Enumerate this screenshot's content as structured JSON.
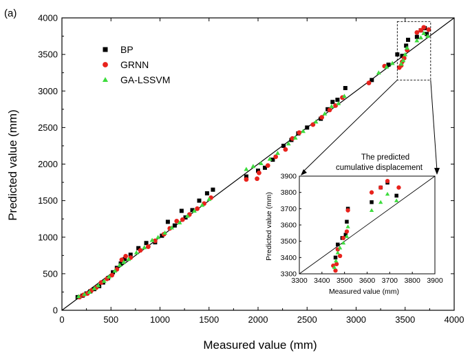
{
  "panel_label": "(a)",
  "chart_data": [
    {
      "type": "scatter",
      "xlabel": "Measured value (mm)",
      "ylabel": "Predicted value (mm)",
      "xlim": [
        0,
        4000
      ],
      "ylim": [
        0,
        4000
      ],
      "xticks": [
        0,
        500,
        1000,
        1500,
        2000,
        2500,
        3000,
        3500,
        4000
      ],
      "yticks": [
        0,
        500,
        1000,
        1500,
        2000,
        2500,
        3000,
        3500,
        4000
      ],
      "reference_line": "y = x",
      "legend_position": "top-left",
      "series": [
        {
          "name": "BP",
          "color": "#000000",
          "marker": "square",
          "points": [
            [
              160,
              180
            ],
            [
              210,
              200
            ],
            [
              250,
              230
            ],
            [
              290,
              260
            ],
            [
              330,
              290
            ],
            [
              380,
              330
            ],
            [
              420,
              380
            ],
            [
              470,
              440
            ],
            [
              520,
              520
            ],
            [
              560,
              580
            ],
            [
              600,
              640
            ],
            [
              640,
              700
            ],
            [
              700,
              760
            ],
            [
              780,
              850
            ],
            [
              860,
              920
            ],
            [
              950,
              930
            ],
            [
              1020,
              1020
            ],
            [
              1080,
              1210
            ],
            [
              1150,
              1160
            ],
            [
              1220,
              1360
            ],
            [
              1260,
              1270
            ],
            [
              1330,
              1370
            ],
            [
              1400,
              1500
            ],
            [
              1480,
              1600
            ],
            [
              1540,
              1650
            ],
            [
              1880,
              1830
            ],
            [
              2000,
              1910
            ],
            [
              2070,
              1950
            ],
            [
              2150,
              2060
            ],
            [
              2260,
              2250
            ],
            [
              2340,
              2330
            ],
            [
              2410,
              2420
            ],
            [
              2500,
              2500
            ],
            [
              2640,
              2620
            ],
            [
              2710,
              2750
            ],
            [
              2760,
              2850
            ],
            [
              2810,
              2880
            ],
            [
              2890,
              3040
            ],
            [
              3160,
              3150
            ],
            [
              3330,
              3360
            ],
            [
              3420,
              3500
            ],
            [
              3470,
              3480
            ],
            [
              3510,
              3620
            ],
            [
              3530,
              3700
            ],
            [
              3620,
              3740
            ],
            [
              3660,
              3830
            ],
            [
              3700,
              3860
            ],
            [
              3720,
              3780
            ]
          ]
        },
        {
          "name": "GRNN",
          "color": "#e8221c",
          "marker": "circle",
          "points": [
            [
              180,
              180
            ],
            [
              220,
              210
            ],
            [
              260,
              230
            ],
            [
              300,
              270
            ],
            [
              350,
              310
            ],
            [
              400,
              380
            ],
            [
              460,
              430
            ],
            [
              510,
              480
            ],
            [
              560,
              560
            ],
            [
              610,
              690
            ],
            [
              650,
              740
            ],
            [
              700,
              720
            ],
            [
              800,
              820
            ],
            [
              880,
              870
            ],
            [
              950,
              950
            ],
            [
              1040,
              1040
            ],
            [
              1100,
              1120
            ],
            [
              1170,
              1220
            ],
            [
              1230,
              1240
            ],
            [
              1300,
              1310
            ],
            [
              1380,
              1390
            ],
            [
              1450,
              1460
            ],
            [
              1520,
              1540
            ],
            [
              1880,
              1790
            ],
            [
              1990,
              1800
            ],
            [
              2010,
              1880
            ],
            [
              2100,
              1980
            ],
            [
              2180,
              2100
            ],
            [
              2280,
              2200
            ],
            [
              2350,
              2350
            ],
            [
              2420,
              2430
            ],
            [
              2560,
              2540
            ],
            [
              2650,
              2640
            ],
            [
              2730,
              2740
            ],
            [
              2790,
              2800
            ],
            [
              2860,
              2910
            ],
            [
              3130,
              3110
            ],
            [
              3290,
              3340
            ],
            [
              3440,
              3320
            ],
            [
              3460,
              3350
            ],
            [
              3470,
              3400
            ],
            [
              3490,
              3450
            ],
            [
              3520,
              3560
            ],
            [
              3620,
              3800
            ],
            [
              3660,
              3830
            ],
            [
              3690,
              3870
            ],
            [
              3740,
              3840
            ]
          ]
        },
        {
          "name": "GA-LSSVM",
          "color": "#3ddc3d",
          "marker": "triangle",
          "points": [
            [
              170,
              190
            ],
            [
              230,
              220
            ],
            [
              280,
              250
            ],
            [
              330,
              300
            ],
            [
              370,
              340
            ],
            [
              430,
              400
            ],
            [
              480,
              460
            ],
            [
              540,
              540
            ],
            [
              590,
              620
            ],
            [
              630,
              660
            ],
            [
              680,
              700
            ],
            [
              760,
              790
            ],
            [
              840,
              860
            ],
            [
              920,
              960
            ],
            [
              980,
              1000
            ],
            [
              1050,
              1060
            ],
            [
              1120,
              1130
            ],
            [
              1200,
              1200
            ],
            [
              1280,
              1290
            ],
            [
              1350,
              1360
            ],
            [
              1430,
              1440
            ],
            [
              1500,
              1520
            ],
            [
              1880,
              1930
            ],
            [
              1950,
              1970
            ],
            [
              2030,
              2010
            ],
            [
              2120,
              2070
            ],
            [
              2200,
              2150
            ],
            [
              2310,
              2280
            ],
            [
              2380,
              2360
            ],
            [
              2460,
              2450
            ],
            [
              2590,
              2580
            ],
            [
              2680,
              2690
            ],
            [
              2750,
              2790
            ],
            [
              2820,
              2830
            ],
            [
              2880,
              2930
            ],
            [
              3230,
              3250
            ],
            [
              3310,
              3330
            ],
            [
              3370,
              3380
            ],
            [
              3460,
              3370
            ],
            [
              3480,
              3420
            ],
            [
              3500,
              3500
            ],
            [
              3520,
              3590
            ],
            [
              3620,
              3690
            ],
            [
              3660,
              3730
            ],
            [
              3690,
              3790
            ],
            [
              3730,
              3750
            ]
          ]
        }
      ]
    },
    {
      "type": "scatter",
      "title": "The predicted\ncumulative displacement",
      "xlabel": "Measured value (mm)",
      "ylabel": "Predicted value (mm)",
      "xlim": [
        3300,
        3900
      ],
      "ylim": [
        3300,
        3900
      ],
      "xticks": [
        3300,
        3400,
        3500,
        3600,
        3700,
        3800,
        3900
      ],
      "yticks": [
        3300,
        3400,
        3500,
        3600,
        3700,
        3800,
        3900
      ],
      "reference_line": "y = x",
      "series": [
        {
          "name": "BP",
          "color": "#000000",
          "marker": "square",
          "points": [
            [
              3460,
              3400
            ],
            [
              3470,
              3480
            ],
            [
              3490,
              3520
            ],
            [
              3505,
              3540
            ],
            [
              3510,
              3620
            ],
            [
              3515,
              3700
            ],
            [
              3620,
              3740
            ],
            [
              3660,
              3830
            ],
            [
              3690,
              3860
            ],
            [
              3730,
              3780
            ]
          ]
        },
        {
          "name": "GRNN",
          "color": "#e8221c",
          "marker": "circle",
          "points": [
            [
              3450,
              3350
            ],
            [
              3460,
              3320
            ],
            [
              3465,
              3360
            ],
            [
              3470,
              3450
            ],
            [
              3480,
              3410
            ],
            [
              3495,
              3520
            ],
            [
              3510,
              3560
            ],
            [
              3515,
              3690
            ],
            [
              3620,
              3800
            ],
            [
              3660,
              3830
            ],
            [
              3690,
              3870
            ],
            [
              3740,
              3830
            ]
          ]
        },
        {
          "name": "GA-LSSVM",
          "color": "#3ddc3d",
          "marker": "triangle",
          "points": [
            [
              3455,
              3340
            ],
            [
              3462,
              3380
            ],
            [
              3470,
              3430
            ],
            [
              3480,
              3460
            ],
            [
              3495,
              3490
            ],
            [
              3510,
              3530
            ],
            [
              3515,
              3590
            ],
            [
              3620,
              3690
            ],
            [
              3660,
              3740
            ],
            [
              3690,
              3790
            ],
            [
              3730,
              3750
            ]
          ]
        }
      ]
    }
  ]
}
